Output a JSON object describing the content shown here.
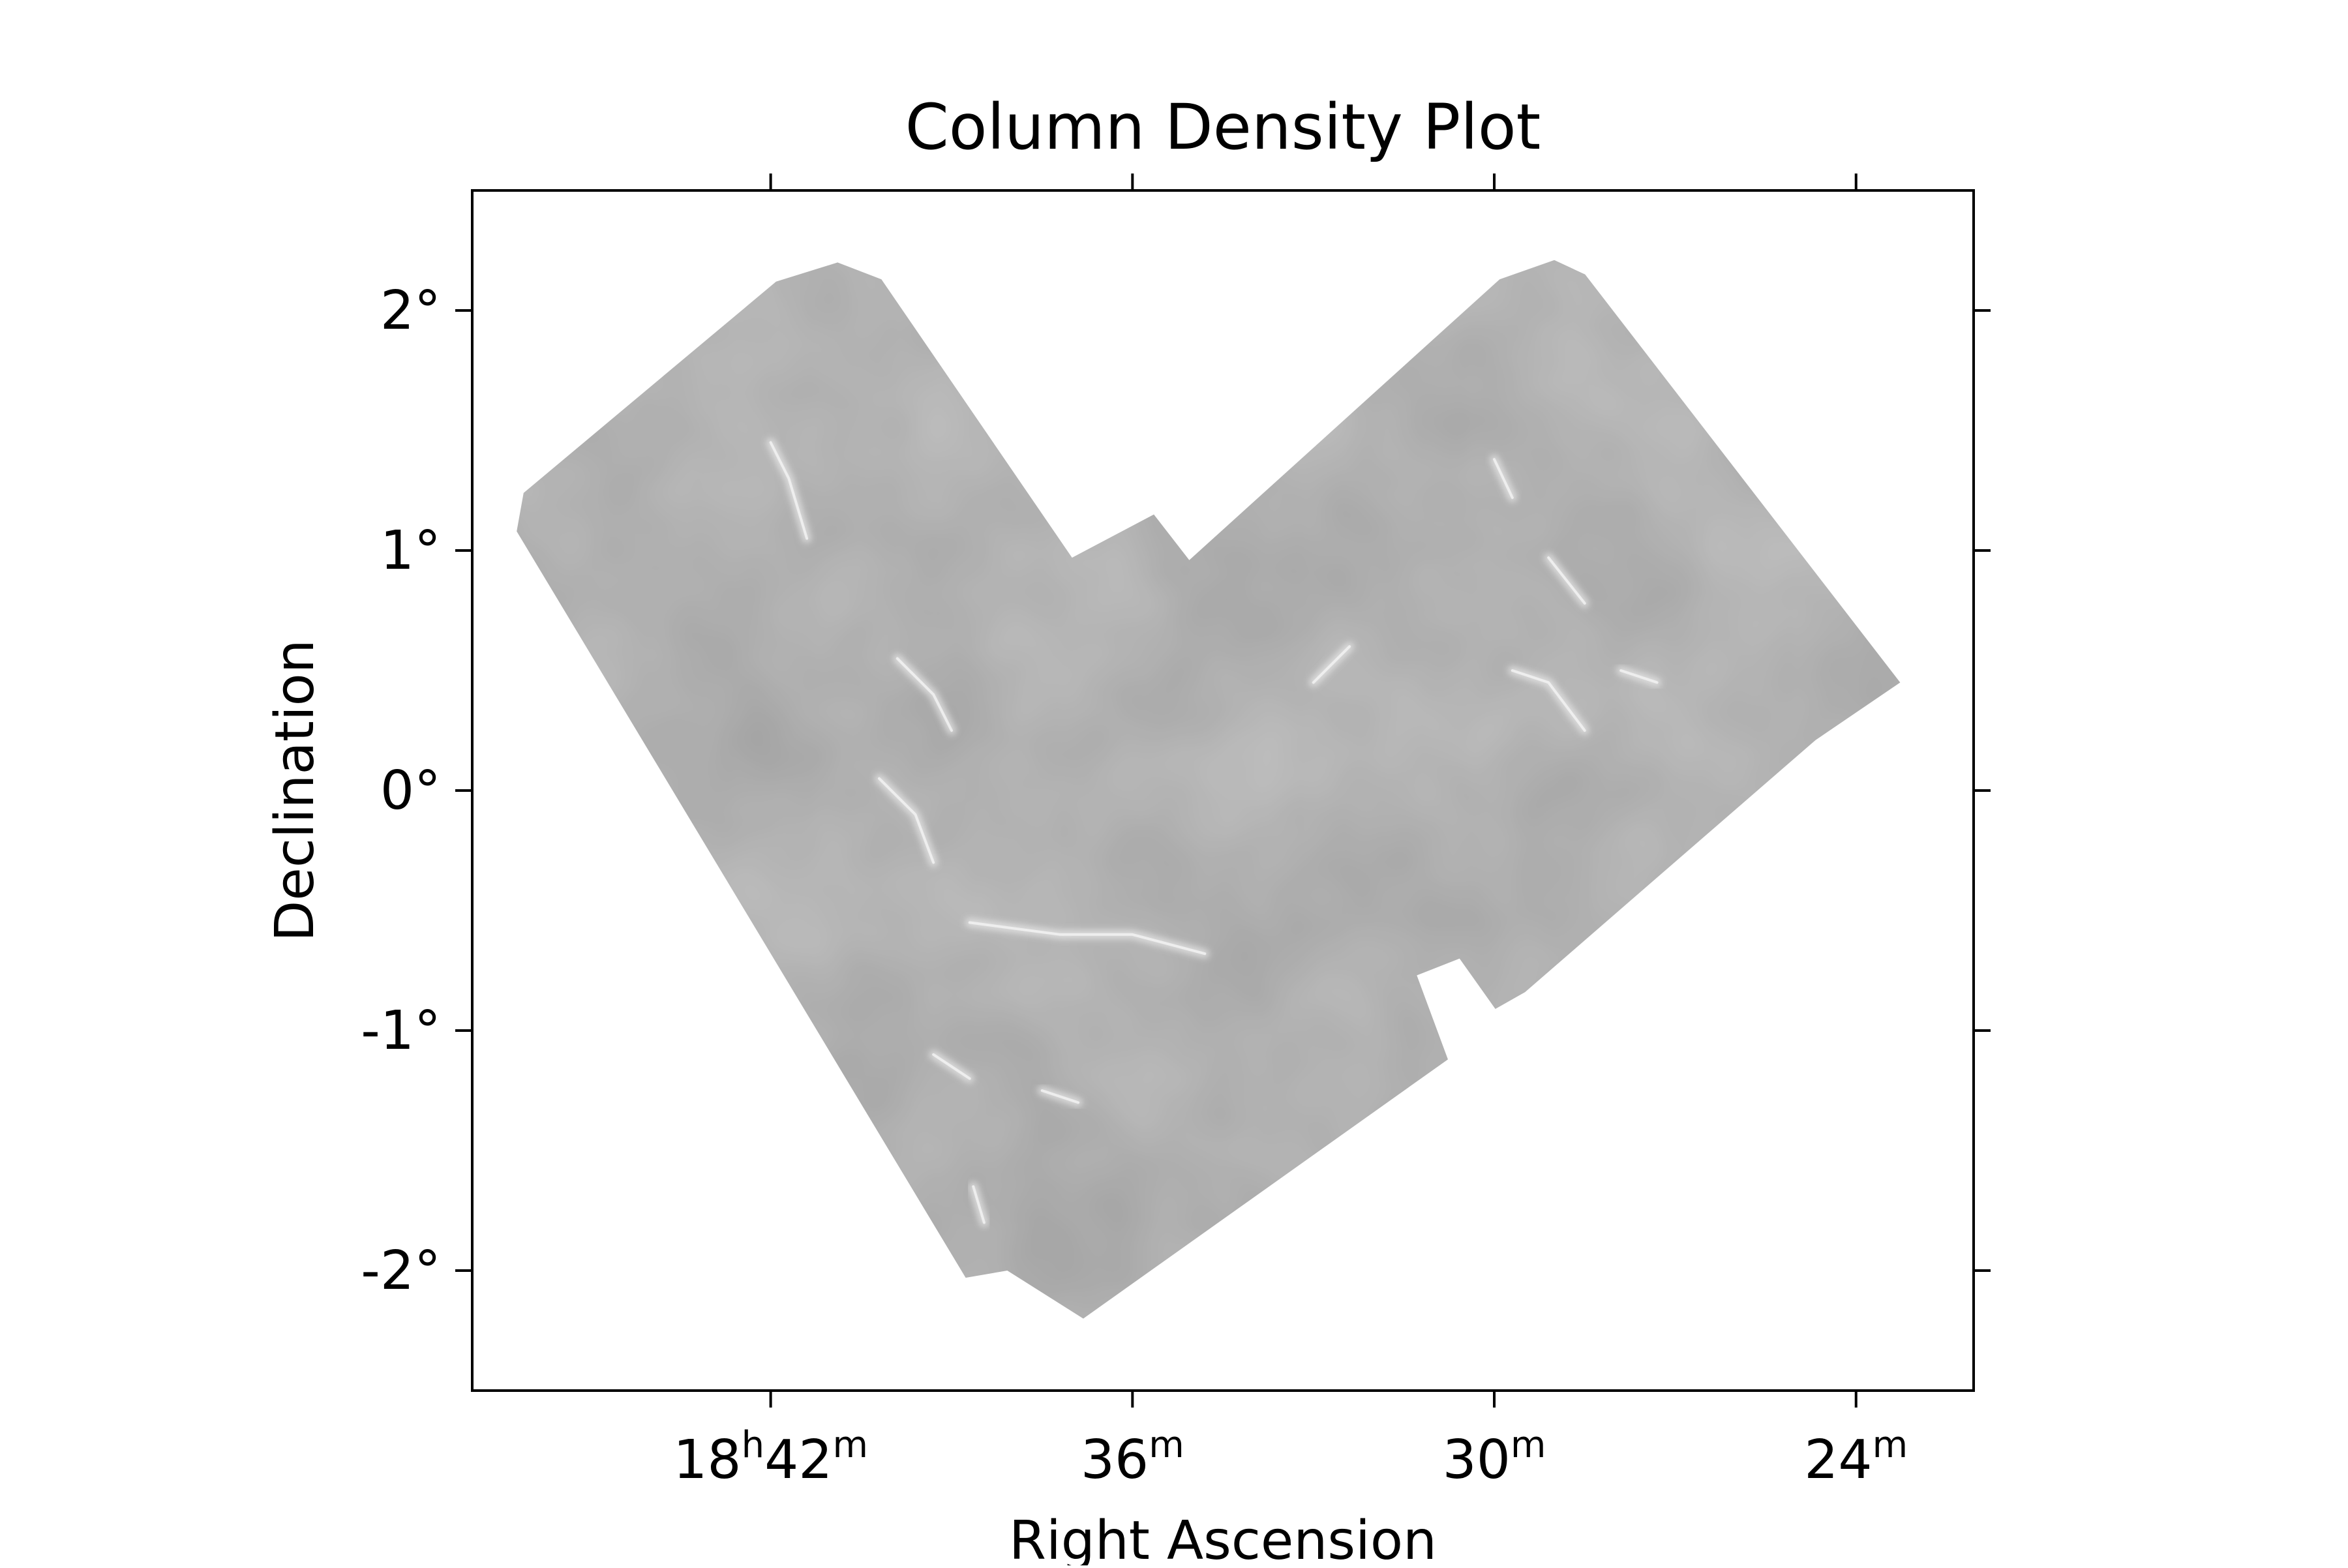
{
  "chart_data": {
    "type": "heatmap",
    "title": "Column Density Plot",
    "xlabel": "Right Ascension",
    "ylabel": "Declination",
    "colormap": "grayscale",
    "grid": false,
    "legend": "none",
    "xlim": [
      18.7825,
      18.3675
    ],
    "ylim": [
      -2.5,
      2.5
    ],
    "x_ticks": [
      {
        "value": 18.7,
        "main": "18",
        "unit1": "h",
        "main2": "42",
        "unit2": "m"
      },
      {
        "value": 18.6,
        "main": "36",
        "unit1": "m"
      },
      {
        "value": 18.5,
        "main": "30",
        "unit1": "m"
      },
      {
        "value": 18.4,
        "main": "24",
        "unit1": "m"
      }
    ],
    "y_ticks": [
      {
        "value": 2,
        "label": "2°"
      },
      {
        "value": 1,
        "label": "1°"
      },
      {
        "value": 0,
        "label": "0°"
      },
      {
        "value": -1,
        "label": "-1°"
      },
      {
        "value": -2,
        "label": "-2°"
      }
    ],
    "coverage_outline": [
      [
        18.7683,
        1.24
      ],
      [
        18.6985,
        2.12
      ],
      [
        18.6815,
        2.2
      ],
      [
        18.6694,
        2.13
      ],
      [
        18.6167,
        0.97
      ],
      [
        18.5941,
        1.15
      ],
      [
        18.5843,
        0.96
      ],
      [
        18.4985,
        2.13
      ],
      [
        18.4834,
        2.21
      ],
      [
        18.4749,
        2.15
      ],
      [
        18.3878,
        0.45
      ],
      [
        18.4112,
        0.21
      ],
      [
        18.4915,
        -0.84
      ],
      [
        18.4997,
        -0.91
      ],
      [
        18.5096,
        -0.7
      ],
      [
        18.5214,
        -0.77
      ],
      [
        18.5128,
        -1.12
      ],
      [
        18.6136,
        -2.2
      ],
      [
        18.6346,
        -2.0
      ],
      [
        18.6461,
        -2.03
      ],
      [
        18.7702,
        1.08
      ]
    ],
    "filaments": [
      [
        [
          18.7,
          1.45
        ],
        [
          18.695,
          1.3
        ],
        [
          18.69,
          1.05
        ]
      ],
      [
        [
          18.665,
          0.55
        ],
        [
          18.655,
          0.4
        ],
        [
          18.65,
          0.25
        ]
      ],
      [
        [
          18.67,
          0.05
        ],
        [
          18.66,
          -0.1
        ],
        [
          18.655,
          -0.3
        ]
      ],
      [
        [
          18.645,
          -0.55
        ],
        [
          18.62,
          -0.6
        ],
        [
          18.6,
          -0.6
        ],
        [
          18.58,
          -0.68
        ]
      ],
      [
        [
          18.655,
          -1.1
        ],
        [
          18.645,
          -1.2
        ]
      ],
      [
        [
          18.625,
          -1.25
        ],
        [
          18.615,
          -1.3
        ]
      ],
      [
        [
          18.644,
          -1.65
        ],
        [
          18.641,
          -1.8
        ]
      ],
      [
        [
          18.5,
          1.38
        ],
        [
          18.495,
          1.22
        ]
      ],
      [
        [
          18.485,
          0.97
        ],
        [
          18.475,
          0.78
        ]
      ],
      [
        [
          18.55,
          0.45
        ],
        [
          18.54,
          0.6
        ]
      ],
      [
        [
          18.495,
          0.5
        ],
        [
          18.485,
          0.45
        ],
        [
          18.475,
          0.25
        ]
      ],
      [
        [
          18.465,
          0.5
        ],
        [
          18.455,
          0.45
        ]
      ]
    ]
  }
}
